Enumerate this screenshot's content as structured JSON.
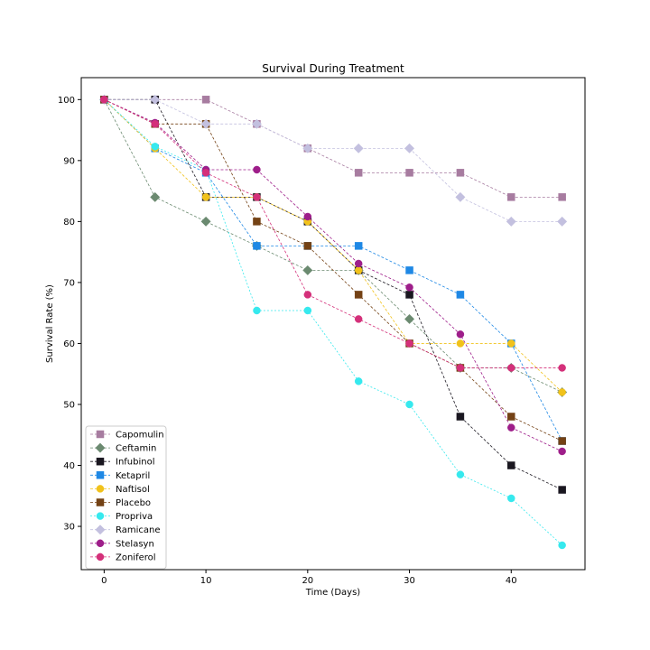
{
  "chart_data": {
    "type": "line",
    "title": "Survival During Treatment",
    "xlabel": "Time (Days)",
    "ylabel": "Survival Rate (%)",
    "xlim": [
      -2.25,
      47.25
    ],
    "ylim": [
      22.9,
      103.6
    ],
    "xticks": [
      0,
      10,
      20,
      30,
      40
    ],
    "yticks": [
      30,
      40,
      50,
      60,
      70,
      80,
      90,
      100
    ],
    "grid": false,
    "legend_placement": "lower-left",
    "x": [
      0,
      5,
      10,
      15,
      20,
      25,
      30,
      35,
      40,
      45
    ],
    "series": [
      {
        "name": "Capomulin",
        "color": "#a77ca0",
        "marker": "square",
        "dash": "3,2",
        "values": [
          100,
          100,
          100,
          96,
          92,
          88,
          88,
          88,
          84,
          84
        ]
      },
      {
        "name": "Ceftamin",
        "color": "#6b8a70",
        "marker": "diamond",
        "dash": "3,2",
        "values": [
          100,
          84,
          80,
          76,
          72,
          72,
          64,
          56,
          56,
          52
        ]
      },
      {
        "name": "Infubinol",
        "color": "#1a1720",
        "marker": "square",
        "dash": "3,2",
        "values": [
          100,
          100,
          84,
          84,
          80,
          72,
          68,
          48,
          40,
          36
        ]
      },
      {
        "name": "Ketapril",
        "color": "#1e88e5",
        "marker": "square",
        "dash": "3,2",
        "values": [
          100,
          92,
          88,
          76,
          76,
          76,
          72,
          68,
          60,
          44
        ]
      },
      {
        "name": "Naftisol",
        "color": "#f1c21b",
        "marker": "circle",
        "dash": "3,2",
        "values": [
          100,
          92,
          84,
          84,
          80,
          72,
          60,
          60,
          60,
          52
        ]
      },
      {
        "name": "Placebo",
        "color": "#744215",
        "marker": "square",
        "dash": "3,2",
        "values": [
          100,
          96,
          96,
          80,
          76,
          68,
          60,
          56,
          48,
          44
        ]
      },
      {
        "name": "Propriva",
        "color": "#36e9ee",
        "marker": "circle",
        "dash": "2,2",
        "values": [
          100,
          92.3,
          88.5,
          65.4,
          65.4,
          53.8,
          50,
          38.5,
          34.6,
          26.9
        ]
      },
      {
        "name": "Ramicane",
        "color": "#c3c0df",
        "marker": "diamond",
        "dash": "3,2",
        "values": [
          100,
          100,
          96,
          96,
          92,
          92,
          92,
          84,
          80,
          80
        ]
      },
      {
        "name": "Stelasyn",
        "color": "#9e1e8a",
        "marker": "circle",
        "dash": "3,2",
        "values": [
          100,
          96.2,
          88.5,
          88.5,
          80.8,
          73.1,
          69.2,
          61.5,
          46.2,
          42.3
        ]
      },
      {
        "name": "Zoniferol",
        "color": "#d4307a",
        "marker": "circle",
        "dash": "3,2",
        "values": [
          100,
          96,
          88,
          84,
          68,
          64,
          60,
          56,
          56,
          56
        ]
      }
    ]
  }
}
